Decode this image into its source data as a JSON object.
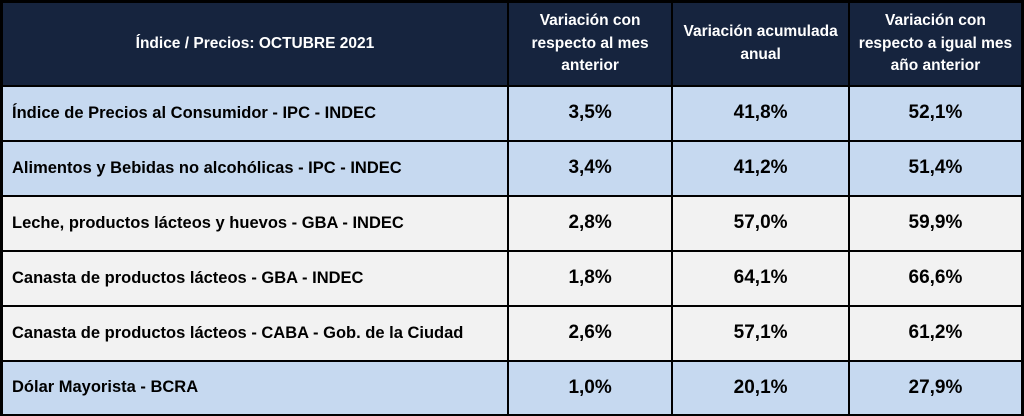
{
  "table": {
    "header": {
      "title": "Índice / Precios: OCTUBRE 2021",
      "monthly": "Variación con respecto al mes anterior",
      "accumulated": "Variación acumulada anual",
      "yoy": "Variación con respecto a igual mes año anterior"
    },
    "rows": [
      {
        "label": "Índice de Precios al Consumidor - IPC - INDEC",
        "monthly": "3,5%",
        "accumulated": "41,8%",
        "yoy": "52,1%",
        "shaded": true
      },
      {
        "label": "Alimentos y Bebidas no alcohólicas - IPC - INDEC",
        "monthly": "3,4%",
        "accumulated": "41,2%",
        "yoy": "51,4%",
        "shaded": true
      },
      {
        "label": "Leche, productos lácteos y huevos - GBA - INDEC",
        "monthly": "2,8%",
        "accumulated": "57,0%",
        "yoy": "59,9%",
        "shaded": false
      },
      {
        "label": "Canasta de productos lácteos - GBA - INDEC",
        "monthly": "1,8%",
        "accumulated": "64,1%",
        "yoy": "66,6%",
        "shaded": false
      },
      {
        "label": "Canasta de productos lácteos - CABA - Gob. de la Ciudad",
        "monthly": "2,6%",
        "accumulated": "57,1%",
        "yoy": "61,2%",
        "shaded": false
      },
      {
        "label": "Dólar Mayorista - BCRA",
        "monthly": "1,0%",
        "accumulated": "20,1%",
        "yoy": "27,9%",
        "shaded": true
      }
    ]
  },
  "colors": {
    "header_bg": "#16243E",
    "header_text": "#FFFFFF",
    "row_shaded_bg": "#C6D9F0",
    "row_plain_bg": "#F2F2F2",
    "border": "#000000",
    "cell_text": "#000000"
  },
  "chart_data": {
    "type": "table",
    "title": "Índice / Precios: OCTUBRE 2021",
    "columns": [
      "Índice / Precios: OCTUBRE 2021",
      "Variación con respecto al mes anterior",
      "Variación acumulada anual",
      "Variación con respecto a igual mes año anterior"
    ],
    "rows": [
      [
        "Índice de Precios al Consumidor - IPC - INDEC",
        "3,5%",
        "41,8%",
        "52,1%"
      ],
      [
        "Alimentos y Bebidas no alcohólicas - IPC - INDEC",
        "3,4%",
        "41,2%",
        "51,4%"
      ],
      [
        "Leche, productos lácteos y huevos - GBA - INDEC",
        "2,8%",
        "57,0%",
        "59,9%"
      ],
      [
        "Canasta de productos lácteos - GBA - INDEC",
        "1,8%",
        "64,1%",
        "66,6%"
      ],
      [
        "Canasta de productos lácteos - CABA - Gob. de la Ciudad",
        "2,6%",
        "57,1%",
        "61,2%"
      ],
      [
        "Dólar Mayorista - BCRA",
        "1,0%",
        "20,1%",
        "27,9%"
      ]
    ],
    "value_unit": "percent",
    "notes_on_format": "decimal comma, es-AR"
  }
}
